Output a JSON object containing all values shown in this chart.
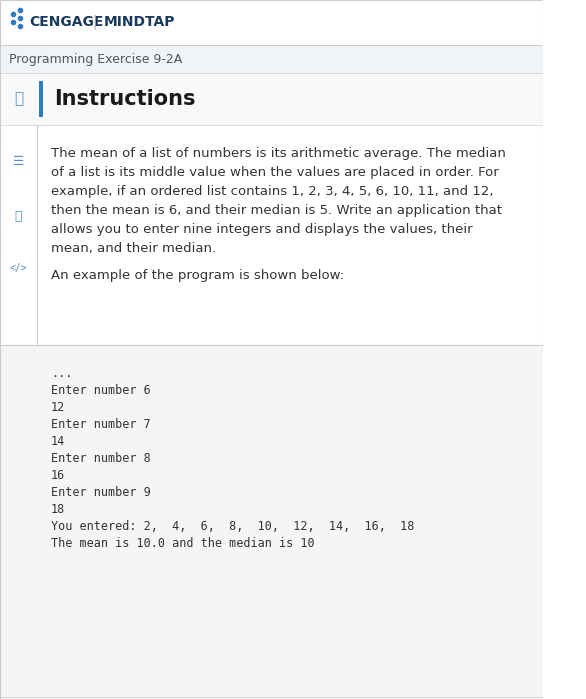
{
  "header_bg": "#ffffff",
  "header_text": "CENGAGE | MINDTAP",
  "header_text_color": "#1a3a5c",
  "header_font_size": 11,
  "subheader_text": "Programming Exercise 9-2A",
  "subheader_bg": "#f0f0f0",
  "subheader_text_color": "#555555",
  "subheader_font_size": 9,
  "instructions_title": "Instructions",
  "instructions_title_color": "#1a1a1a",
  "instructions_title_font_size": 16,
  "accent_color": "#2e7bbf",
  "body_bg": "#ffffff",
  "body_text_color": "#333333",
  "body_font_size": 9.5,
  "body_text": "The mean of a list of numbers is its arithmetic average. The median\nof a list is its middle value when the values are placed in order. For\nexample, if an ordered list contains 1, 2, 3, 4, 5, 6, 10, 11, and 12,\nthen the mean is 6, and their median is 5. Write an application that\nallows you to enter nine integers and displays the values, their\nmean, and their median.",
  "below_text": "An example of the program is shown below:",
  "code_bg": "#f5f5f5",
  "code_text_color": "#333333",
  "code_font_size": 8.5,
  "code_lines": [
    "...",
    "Enter number 6",
    "12",
    "Enter number 7",
    "14",
    "Enter number 8",
    "16",
    "Enter number 9",
    "18",
    "You entered: 2,  4,  6,  8,  10,  12,  14,  16,  18",
    "The mean is 10.0 and the median is 10"
  ],
  "sidebar_icon_color": "#5a8fc0",
  "sidebar_bg": "#ffffff",
  "logo_dot_color": "#2e7bbf",
  "cengage_color": "#1a3a5c",
  "mindtap_color": "#1a3a5c",
  "divider_color": "#cccccc",
  "left_border_color": "#2e7bbf"
}
